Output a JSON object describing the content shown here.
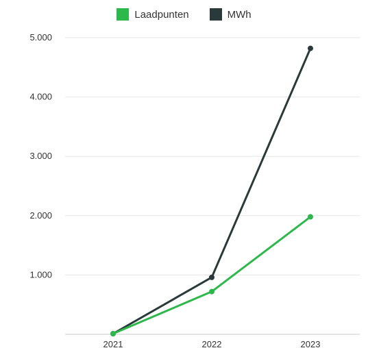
{
  "chart_data": {
    "type": "line",
    "title": "",
    "xlabel": "",
    "ylabel": "",
    "categories": [
      "2021",
      "2022",
      "2023"
    ],
    "ylim": [
      0,
      5000
    ],
    "y_ticks": [
      1000,
      2000,
      3000,
      4000,
      5000
    ],
    "y_tick_labels": [
      "1.000",
      "2.000",
      "3.000",
      "4.000",
      "5.000"
    ],
    "grid": true,
    "legend_position": "top-center",
    "series": [
      {
        "name": "Laadpunten",
        "color": "#2db84b",
        "values": [
          10,
          720,
          1980
        ]
      },
      {
        "name": "MWh",
        "color": "#2a3a3a",
        "values": [
          10,
          960,
          4820
        ]
      }
    ]
  }
}
